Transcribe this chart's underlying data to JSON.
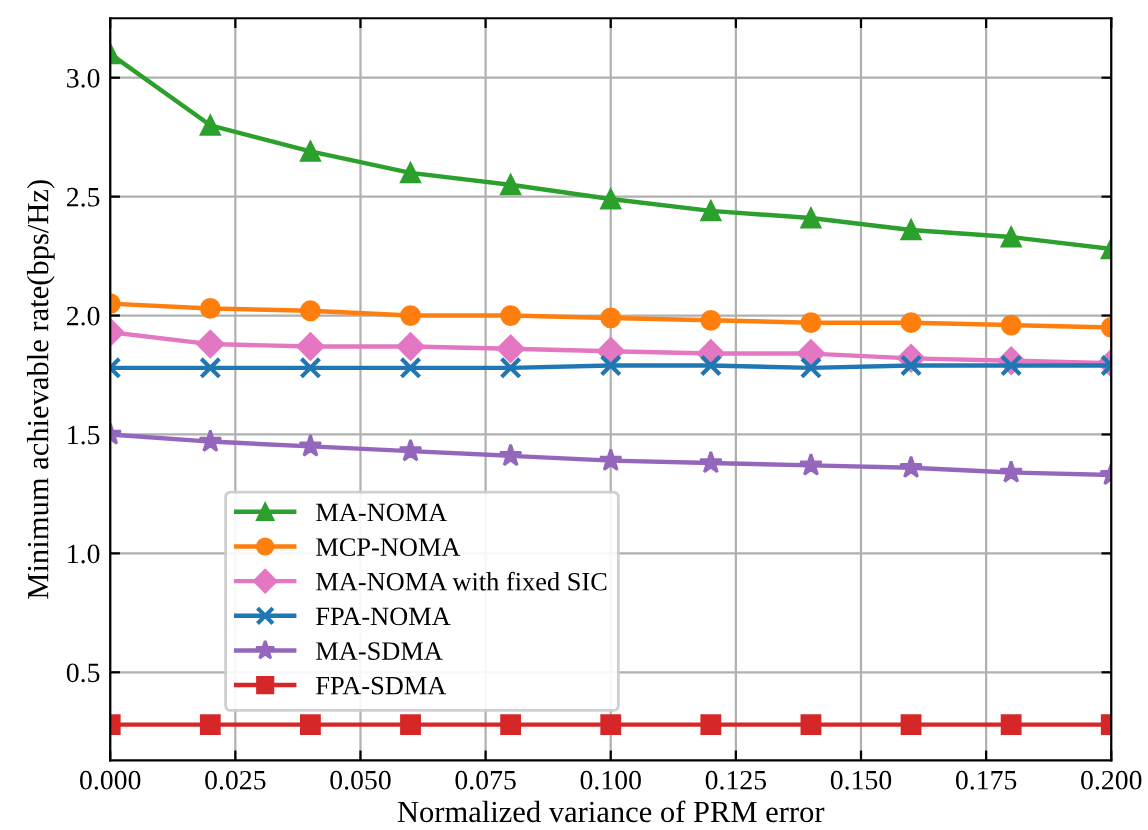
{
  "chart_data": {
    "type": "line",
    "xlabel": "Normalized variance of PRM error",
    "ylabel": "Minimum achievable rate(bps/Hz)",
    "x": [
      0,
      0.02,
      0.04,
      0.06,
      0.08,
      0.1,
      0.12,
      0.14,
      0.16,
      0.18,
      0.2
    ],
    "series": [
      {
        "name": "MA-NOMA",
        "color": "#2ca02c",
        "marker": "triangle",
        "values": [
          3.1,
          2.8,
          2.69,
          2.6,
          2.55,
          2.49,
          2.44,
          2.41,
          2.36,
          2.33,
          2.28
        ]
      },
      {
        "name": "MCP-NOMA",
        "color": "#ff7f0e",
        "marker": "circle",
        "values": [
          2.05,
          2.03,
          2.02,
          2.0,
          2.0,
          1.99,
          1.98,
          1.97,
          1.97,
          1.96,
          1.95
        ]
      },
      {
        "name": "MA-NOMA with fixed SIC",
        "color": "#e377c2",
        "marker": "diamond",
        "values": [
          1.93,
          1.88,
          1.87,
          1.87,
          1.86,
          1.85,
          1.84,
          1.84,
          1.82,
          1.81,
          1.8
        ]
      },
      {
        "name": "FPA-NOMA",
        "color": "#1f77b4",
        "marker": "cross",
        "values": [
          1.78,
          1.78,
          1.78,
          1.78,
          1.78,
          1.79,
          1.79,
          1.78,
          1.79,
          1.79,
          1.79
        ]
      },
      {
        "name": "MA-SDMA",
        "color": "#9467bd",
        "marker": "star",
        "values": [
          1.5,
          1.47,
          1.45,
          1.43,
          1.41,
          1.39,
          1.38,
          1.37,
          1.36,
          1.34,
          1.33
        ]
      },
      {
        "name": "FPA-SDMA",
        "color": "#d62728",
        "marker": "square",
        "values": [
          0.28,
          0.28,
          0.28,
          0.28,
          0.28,
          0.28,
          0.28,
          0.28,
          0.28,
          0.28,
          0.28
        ]
      }
    ],
    "xlim": [
      0,
      0.2
    ],
    "xticks": [
      {
        "value": 0,
        "label": "0.000"
      },
      {
        "value": 0.025,
        "label": "0.025"
      },
      {
        "value": 0.05,
        "label": "0.050"
      },
      {
        "value": 0.075,
        "label": "0.075"
      },
      {
        "value": 0.1,
        "label": "0.100"
      },
      {
        "value": 0.125,
        "label": "0.125"
      },
      {
        "value": 0.15,
        "label": "0.150"
      },
      {
        "value": 0.175,
        "label": "0.175"
      },
      {
        "value": 0.2,
        "label": "0.200"
      }
    ],
    "ylim": [
      0.13,
      3.25
    ],
    "yticks": [
      {
        "value": 0.5,
        "label": "0.5"
      },
      {
        "value": 1.0,
        "label": "1.0"
      },
      {
        "value": 1.5,
        "label": "1.5"
      },
      {
        "value": 2.0,
        "label": "2.0"
      },
      {
        "value": 2.5,
        "label": "2.5"
      },
      {
        "value": 3.0,
        "label": "3.0"
      }
    ],
    "grid": true,
    "legend": "bottom left",
    "line_style": "solid"
  }
}
